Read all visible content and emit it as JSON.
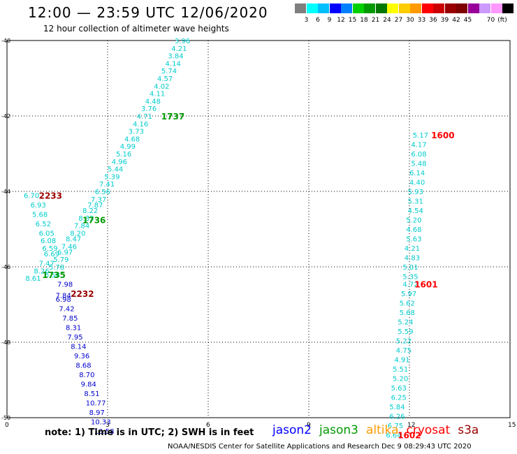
{
  "title": "12:00 — 23:59 UTC 12/06/2020",
  "subtitle": "12 hour collection of altimeter wave heights",
  "colorbar": {
    "colors": [
      "#7f7f7f",
      "#00ffff",
      "#00bfff",
      "#0000ff",
      "#007fff",
      "#00d000",
      "#009900",
      "#007700",
      "#ffff00",
      "#ffcc00",
      "#ff9900",
      "#ff0000",
      "#cc0000",
      "#990000",
      "#7f0000",
      "#990099",
      "#cc99ff",
      "#ff99ff",
      "#000000"
    ],
    "labels": [
      "3",
      "6",
      "9",
      "12",
      "15",
      "18",
      "21",
      "24",
      "27",
      "30",
      "33",
      "36",
      "39",
      "42",
      "45",
      "70",
      "(ft)"
    ],
    "label_positions_index": [
      1,
      2,
      3,
      4,
      5,
      6,
      7,
      8,
      9,
      10,
      11,
      12,
      13,
      14,
      15,
      17,
      18
    ]
  },
  "note": "note:  1) Time is in UTC;  2) SWH is in feet",
  "legend": [
    {
      "name": "jason2",
      "color": "#0000ff"
    },
    {
      "name": "jason3",
      "color": "#009900"
    },
    {
      "name": "altika",
      "color": "#ff9900"
    },
    {
      "name": "cryosat",
      "color": "#ff0000"
    },
    {
      "name": "s3a",
      "color": "#990000"
    }
  ],
  "footer": "NOAA/NESDIS Center for Satellite Applications and Research    Dec  9 08:29:43 UTC 2020",
  "chart_data": {
    "type": "scatter",
    "xlim": [
      0,
      15
    ],
    "ylim": [
      -50,
      -40
    ],
    "x_ticks": [
      "0",
      "3",
      "6",
      "9",
      "12",
      "15"
    ],
    "y_ticks": [
      "-40",
      "-42",
      "-44",
      "-46",
      "-48",
      "-50"
    ],
    "grid": true,
    "series": [
      {
        "color": "#00cccc",
        "points": [
          [
            5.0,
            -40.0,
            "3.96"
          ],
          [
            4.9,
            -40.2,
            "4.21"
          ],
          [
            4.8,
            -40.4,
            "3.84"
          ],
          [
            4.72,
            -40.6,
            "4.14"
          ],
          [
            4.6,
            -40.8,
            "5.74"
          ],
          [
            4.48,
            -41.0,
            "4.57"
          ],
          [
            4.38,
            -41.2,
            "4.02"
          ],
          [
            4.25,
            -41.4,
            "4.11"
          ],
          [
            4.12,
            -41.6,
            "4.48"
          ],
          [
            4.0,
            -41.8,
            "3.76"
          ],
          [
            3.87,
            -42.0,
            "4.71"
          ],
          [
            3.75,
            -42.2,
            "4.16"
          ],
          [
            3.62,
            -42.4,
            "3.73"
          ],
          [
            3.5,
            -42.6,
            "4.68"
          ],
          [
            3.37,
            -42.8,
            "4.99"
          ],
          [
            3.25,
            -43.0,
            "5.16"
          ],
          [
            3.12,
            -43.2,
            "4.96"
          ],
          [
            3.0,
            -43.4,
            "5.44"
          ],
          [
            2.9,
            -43.6,
            "5.39"
          ],
          [
            2.75,
            -43.8,
            "7.41"
          ],
          [
            2.62,
            -44.0,
            "6.56"
          ],
          [
            2.5,
            -44.2,
            "7.37"
          ],
          [
            2.4,
            -44.35,
            "7.87"
          ],
          [
            2.25,
            -44.5,
            "8.22"
          ],
          [
            2.13,
            -44.7,
            "8.33"
          ],
          [
            2.0,
            -44.9,
            "7.84"
          ],
          [
            1.88,
            -45.1,
            "8.20"
          ],
          [
            1.75,
            -45.25,
            "8.47"
          ],
          [
            1.62,
            -45.45,
            "7.46"
          ],
          [
            1.5,
            -45.6,
            "6.97"
          ],
          [
            1.38,
            -45.8,
            "5.79"
          ],
          [
            1.25,
            -46.0,
            "5.78"
          ],
          [
            1.12,
            -46.2,
            "6.58"
          ],
          [
            0.5,
            -44.1,
            "6.70"
          ],
          [
            0.7,
            -44.35,
            "6.93"
          ],
          [
            0.75,
            -44.6,
            "5.68"
          ],
          [
            0.85,
            -44.85,
            "6.52"
          ],
          [
            0.95,
            -45.1,
            "6.05"
          ],
          [
            1.0,
            -45.3,
            "6.08"
          ],
          [
            1.05,
            -45.5,
            "6.59"
          ],
          [
            1.1,
            -45.65,
            "6.69"
          ],
          [
            0.95,
            -45.9,
            "7.47"
          ],
          [
            0.8,
            -46.1,
            "8.26"
          ],
          [
            0.55,
            -46.3,
            "8.61"
          ],
          [
            12.1,
            -42.5,
            "5.17"
          ],
          [
            12.05,
            -42.75,
            "4.17"
          ],
          [
            12.05,
            -43.0,
            "6.08"
          ],
          [
            12.05,
            -43.25,
            "5.48"
          ],
          [
            12.0,
            -43.5,
            "6.14"
          ],
          [
            12.0,
            -43.75,
            "4.40"
          ],
          [
            11.95,
            -44.0,
            "5.93"
          ],
          [
            11.95,
            -44.25,
            "5.31"
          ],
          [
            11.95,
            -44.5,
            "4.54"
          ],
          [
            11.9,
            -44.75,
            "5.20"
          ],
          [
            11.9,
            -45.0,
            "4.68"
          ],
          [
            11.9,
            -45.25,
            "5.63"
          ],
          [
            11.85,
            -45.5,
            "4.21"
          ],
          [
            11.85,
            -45.75,
            "4.83"
          ],
          [
            11.8,
            -46.0,
            "5.01"
          ],
          [
            11.8,
            -46.25,
            "5.35"
          ],
          [
            11.8,
            -46.45,
            "4.72"
          ],
          [
            11.75,
            -46.7,
            "5.97"
          ],
          [
            11.7,
            -46.95,
            "5.62"
          ],
          [
            11.7,
            -47.2,
            "5.68"
          ],
          [
            11.65,
            -47.45,
            "5.24"
          ],
          [
            11.65,
            -47.7,
            "5.59"
          ],
          [
            11.6,
            -47.95,
            "5.22"
          ],
          [
            11.6,
            -48.2,
            "4.75"
          ],
          [
            11.55,
            -48.45,
            "4.91"
          ],
          [
            11.5,
            -48.7,
            "5.51"
          ],
          [
            11.5,
            -48.95,
            "5.20"
          ],
          [
            11.45,
            -49.2,
            "5.63"
          ],
          [
            11.45,
            -49.45,
            "6.25"
          ],
          [
            11.4,
            -49.7,
            "5.84"
          ],
          [
            11.4,
            -49.95,
            "6.26"
          ],
          [
            11.35,
            -50.2,
            "6.75"
          ],
          [
            11.3,
            -50.45,
            "6.64"
          ]
        ]
      },
      {
        "color": "#0000cc",
        "points": [
          [
            1.45,
            -46.75,
            "7.84"
          ],
          [
            1.5,
            -46.45,
            "7.98"
          ],
          [
            1.45,
            -46.85,
            "6.98"
          ],
          [
            1.55,
            -47.1,
            "7.42"
          ],
          [
            1.65,
            -47.35,
            "7.85"
          ],
          [
            1.75,
            -47.6,
            "8.31"
          ],
          [
            1.8,
            -47.85,
            "7.95"
          ],
          [
            1.9,
            -48.1,
            "8.14"
          ],
          [
            2.0,
            -48.35,
            "9.36"
          ],
          [
            2.05,
            -48.6,
            "8.68"
          ],
          [
            2.15,
            -48.85,
            "8.70"
          ],
          [
            2.2,
            -49.1,
            "9.84"
          ],
          [
            2.3,
            -49.35,
            "8.51"
          ],
          [
            2.35,
            -49.6,
            "10.77"
          ],
          [
            2.45,
            -49.85,
            "8.97"
          ],
          [
            2.5,
            -50.1,
            "10.33"
          ],
          [
            2.6,
            -50.35,
            "10.58"
          ]
        ]
      }
    ],
    "time_labels": [
      {
        "x": 4.6,
        "y": -42.0,
        "text": "1737",
        "color": "#009900"
      },
      {
        "x": 2.25,
        "y": -44.75,
        "text": "1736",
        "color": "#009900"
      },
      {
        "x": 1.05,
        "y": -46.2,
        "text": "1735",
        "color": "#009900"
      },
      {
        "x": 0.95,
        "y": -44.1,
        "text": "2233",
        "color": "#990000"
      },
      {
        "x": 1.9,
        "y": -46.7,
        "text": "2232",
        "color": "#990000"
      },
      {
        "x": 12.65,
        "y": -42.5,
        "text": "1600",
        "color": "#ff0000"
      },
      {
        "x": 12.15,
        "y": -46.45,
        "text": "1601",
        "color": "#ff0000"
      },
      {
        "x": 11.65,
        "y": -50.45,
        "text": "1602",
        "color": "#ff0000"
      }
    ]
  }
}
